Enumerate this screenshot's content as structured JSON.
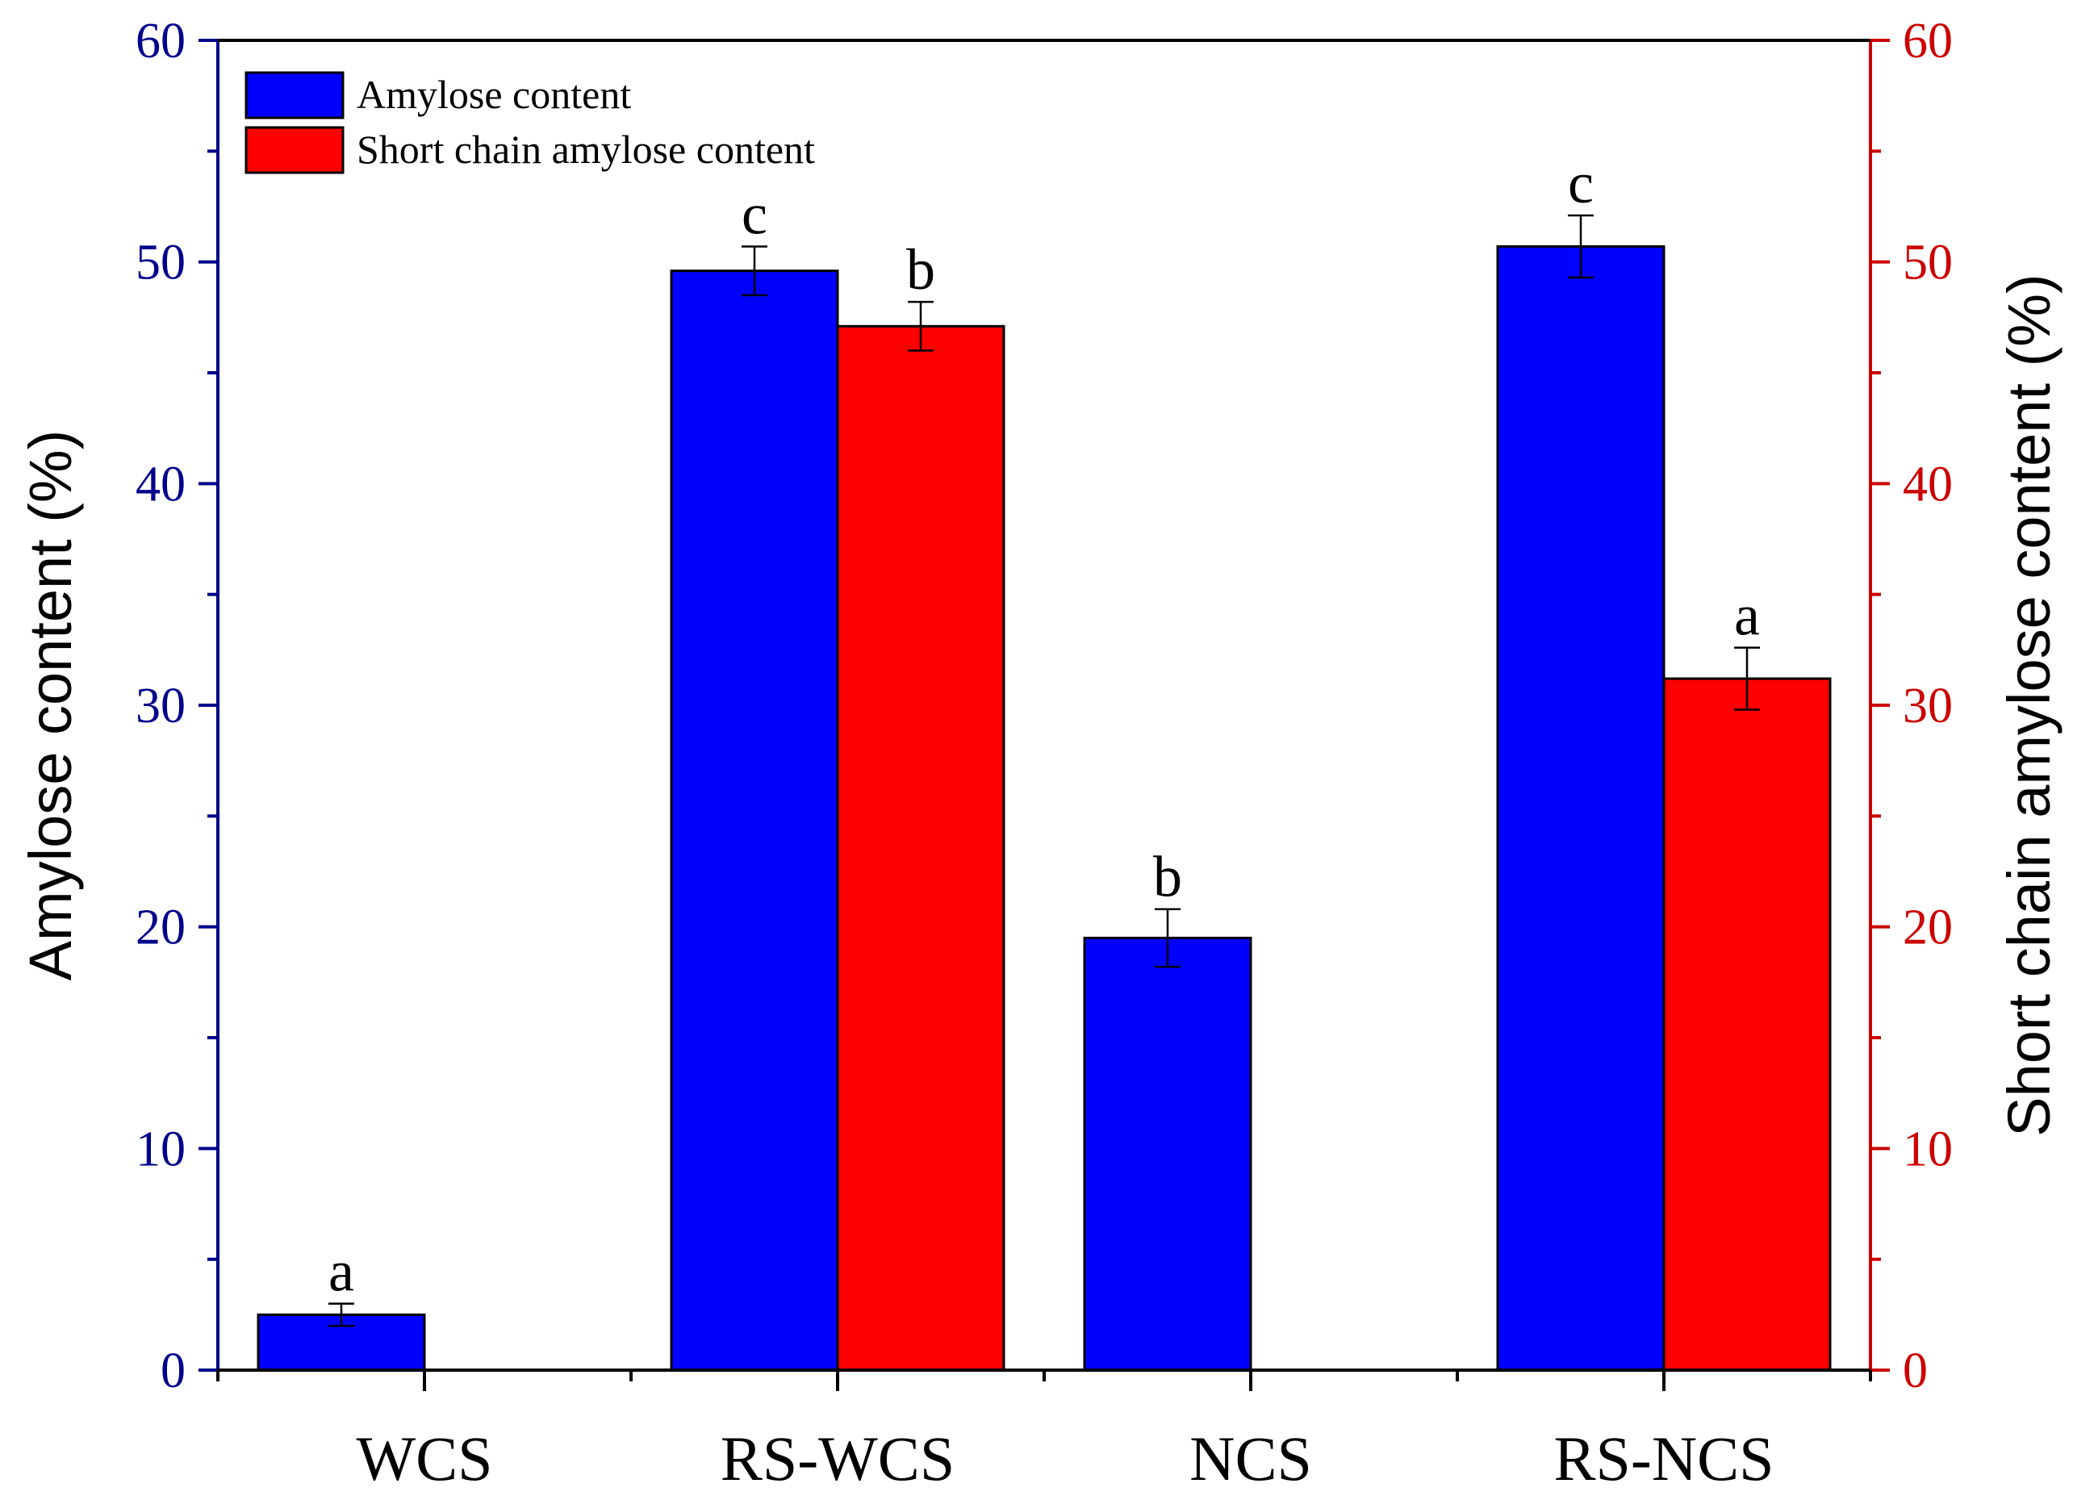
{
  "chart_data": {
    "type": "bar",
    "categories": [
      "WCS",
      "RS-WCS",
      "NCS",
      "RS-NCS"
    ],
    "series": [
      {
        "name": "Amylose content",
        "axis": "left",
        "color": "#0000ff",
        "values": [
          2.5,
          49.6,
          19.5,
          50.7
        ],
        "errors": [
          0.5,
          1.1,
          1.3,
          1.4
        ],
        "labels": [
          "a",
          "c",
          "b",
          "c"
        ]
      },
      {
        "name": "Short chain amylose content",
        "axis": "right",
        "color": "#ff0000",
        "values": [
          null,
          47.1,
          null,
          31.2
        ],
        "errors": [
          null,
          1.1,
          null,
          1.4
        ],
        "labels": [
          "",
          "b",
          "",
          "a"
        ]
      }
    ],
    "ylabel_left": "Amylose content (%)",
    "ylabel_right": "Short chain amylose content (%)",
    "ylim": [
      0,
      60
    ],
    "yticks": [
      "0",
      "10",
      "20",
      "30",
      "40",
      "50",
      "60"
    ],
    "left_axis_color": "#00008b",
    "right_axis_color": "#cc0000",
    "legend_position": "top-left",
    "grid": false
  }
}
